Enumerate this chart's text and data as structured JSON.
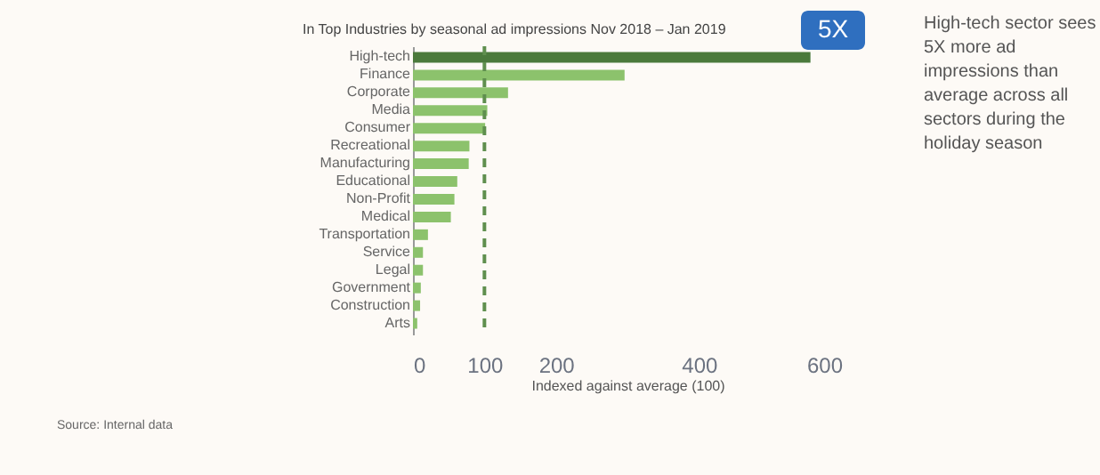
{
  "chart_data": {
    "type": "bar",
    "orientation": "horizontal",
    "title": "In Top Industries by seasonal ad impressions Nov 2018 – Jan 2019",
    "xlabel": "Indexed against average (100)",
    "categories": [
      "High-tech",
      "Finance",
      "Corporate",
      "Media",
      "Consumer",
      "Recreational",
      "Manufacturing",
      "Educational",
      "Non-Profit",
      "Medical",
      "Transportation",
      "Service",
      "Legal",
      "Government",
      "Construction",
      "Arts"
    ],
    "values": [
      556,
      296,
      133,
      104,
      101,
      79,
      78,
      62,
      58,
      53,
      21,
      14,
      14,
      11,
      10,
      6
    ],
    "colors": [
      "#4b7a3c",
      "#8cc26c",
      "#8cc26c",
      "#8cc26c",
      "#8cc26c",
      "#8cc26c",
      "#8cc26c",
      "#8cc26c",
      "#8cc26c",
      "#8cc26c",
      "#8cc26c",
      "#8cc26c",
      "#8cc26c",
      "#8cc26c",
      "#8cc26c",
      "#8cc26c"
    ],
    "xlim": [
      0,
      600
    ],
    "xticks": [
      0,
      100,
      200,
      400,
      600
    ],
    "ref_lines": [
      {
        "axis": "x",
        "value": 100,
        "color": "#5f8f4e",
        "line_style": "dashed"
      }
    ],
    "grid": false,
    "annotations": [
      "5X",
      "High-tech sector sees 5X more ad impressions than average across all sectors during the holiday season",
      "Source: Internal data"
    ]
  }
}
